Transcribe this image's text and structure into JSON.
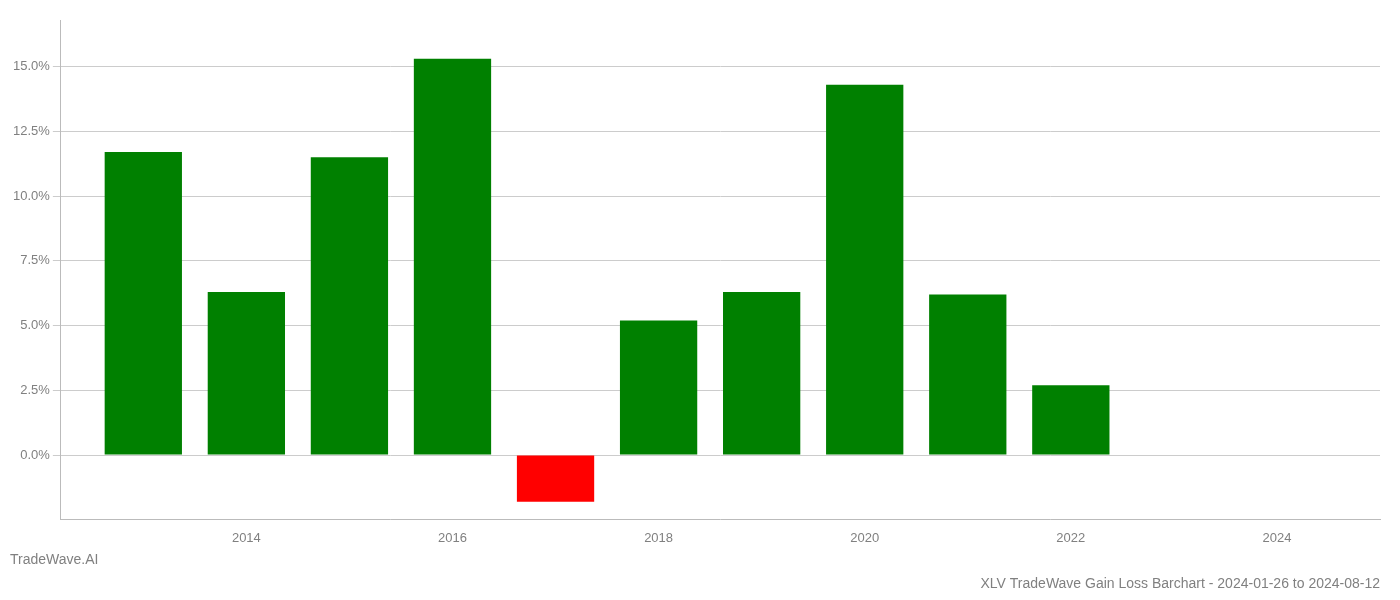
{
  "chart_data": {
    "type": "bar",
    "title": "XLV TradeWave Gain Loss Barchart - 2024-01-26 to 2024-08-12",
    "subtitle": "TradeWave.AI",
    "x": [
      2013,
      2014,
      2015,
      2016,
      2017,
      2018,
      2019,
      2020,
      2021,
      2022,
      2023
    ],
    "values": [
      0.117,
      0.063,
      0.115,
      0.153,
      -0.018,
      0.052,
      0.063,
      0.143,
      0.062,
      0.027,
      0.0
    ],
    "colors": [
      "#008000",
      "#008000",
      "#008000",
      "#008000",
      "#ff0000",
      "#008000",
      "#008000",
      "#008000",
      "#008000",
      "#008000",
      "#008000"
    ],
    "xlim": [
      2012.2,
      2025.0
    ],
    "xticks": [
      2014,
      2016,
      2018,
      2020,
      2022,
      2024
    ],
    "ylim": [
      -0.025,
      0.168
    ],
    "yticks": [
      {
        "value": 0.0,
        "label": "0.0%"
      },
      {
        "value": 0.025,
        "label": "2.5%"
      },
      {
        "value": 0.05,
        "label": "5.0%"
      },
      {
        "value": 0.075,
        "label": "7.5%"
      },
      {
        "value": 0.1,
        "label": "10.0%"
      },
      {
        "value": 0.125,
        "label": "12.5%"
      },
      {
        "value": 0.15,
        "label": "15.0%"
      }
    ],
    "grid": true
  }
}
